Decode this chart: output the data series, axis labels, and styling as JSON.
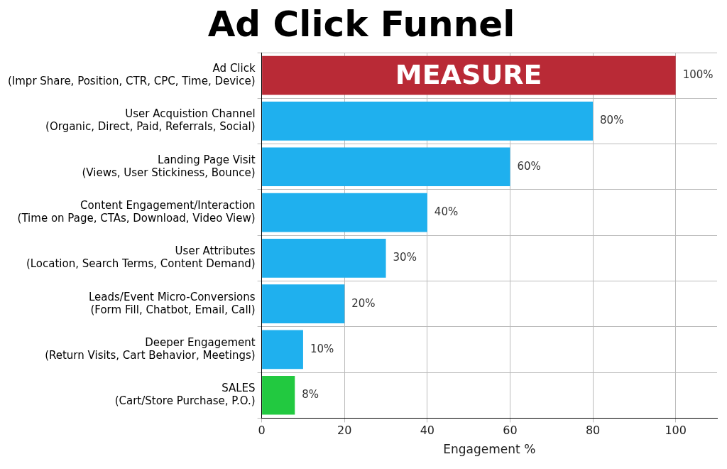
{
  "chart_data": {
    "type": "bar",
    "orientation": "horizontal",
    "title": "Ad Click Funnel",
    "xlabel": "Engagement %",
    "categories": [
      "Ad Click\n(Impr Share, Position, CTR, CPC, Time, Device)",
      "User Acquistion Channel\n(Organic, Direct, Paid, Referrals, Social)",
      "Landing Page Visit\n(Views, User Stickiness, Bounce)",
      "Content Engagement/Interaction\n(Time on Page, CTAs, Download, Video View)",
      "User Attributes\n(Location, Search Terms, Content Demand)",
      "Leads/Event Micro-Conversions\n(Form Fill, Chatbot, Email, Call)",
      "Deeper Engagement\n(Return Visits, Cart Behavior, Meetings)",
      "SALES\n(Cart/Store Purchase, P.O.)"
    ],
    "values": [
      100,
      80,
      60,
      40,
      30,
      20,
      10,
      8
    ],
    "colors": [
      "#b92a36",
      "#1fb0ee",
      "#1fb0ee",
      "#1fb0ee",
      "#1fb0ee",
      "#1fb0ee",
      "#1fb0ee",
      "#22c940"
    ],
    "value_labels": [
      "100%",
      "80%",
      "60%",
      "40%",
      "30%",
      "20%",
      "10%",
      "8%"
    ],
    "xlim": [
      0,
      110
    ],
    "xticks": [
      0,
      20,
      40,
      60,
      80,
      100
    ],
    "grid": true,
    "legend": false,
    "annotations": [
      {
        "text": "MEASURE",
        "x": 50,
        "y": "Ad Click\n(Impr Share, Position, CTR, CPC, Time, Device)"
      }
    ]
  }
}
